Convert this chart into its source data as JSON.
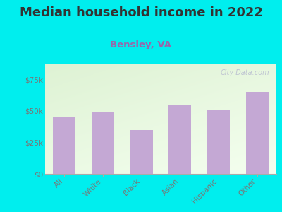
{
  "title": "Median household income in 2022",
  "subtitle": "Bensley, VA",
  "categories": [
    "All",
    "White",
    "Black",
    "Asian",
    "Hispanic",
    "Other"
  ],
  "values": [
    45000,
    49000,
    35000,
    55000,
    51000,
    65000
  ],
  "bar_color": "#c4a8d4",
  "background_color": "#00eeee",
  "title_color": "#333333",
  "subtitle_color": "#9966aa",
  "tick_color": "#777777",
  "ylim": [
    0,
    87500
  ],
  "yticks": [
    0,
    25000,
    50000,
    75000
  ],
  "ytick_labels": [
    "$0",
    "$25k",
    "$50k",
    "$75k"
  ],
  "watermark": "City-Data.com",
  "title_fontsize": 13,
  "subtitle_fontsize": 9.5,
  "tick_fontsize": 7.5
}
